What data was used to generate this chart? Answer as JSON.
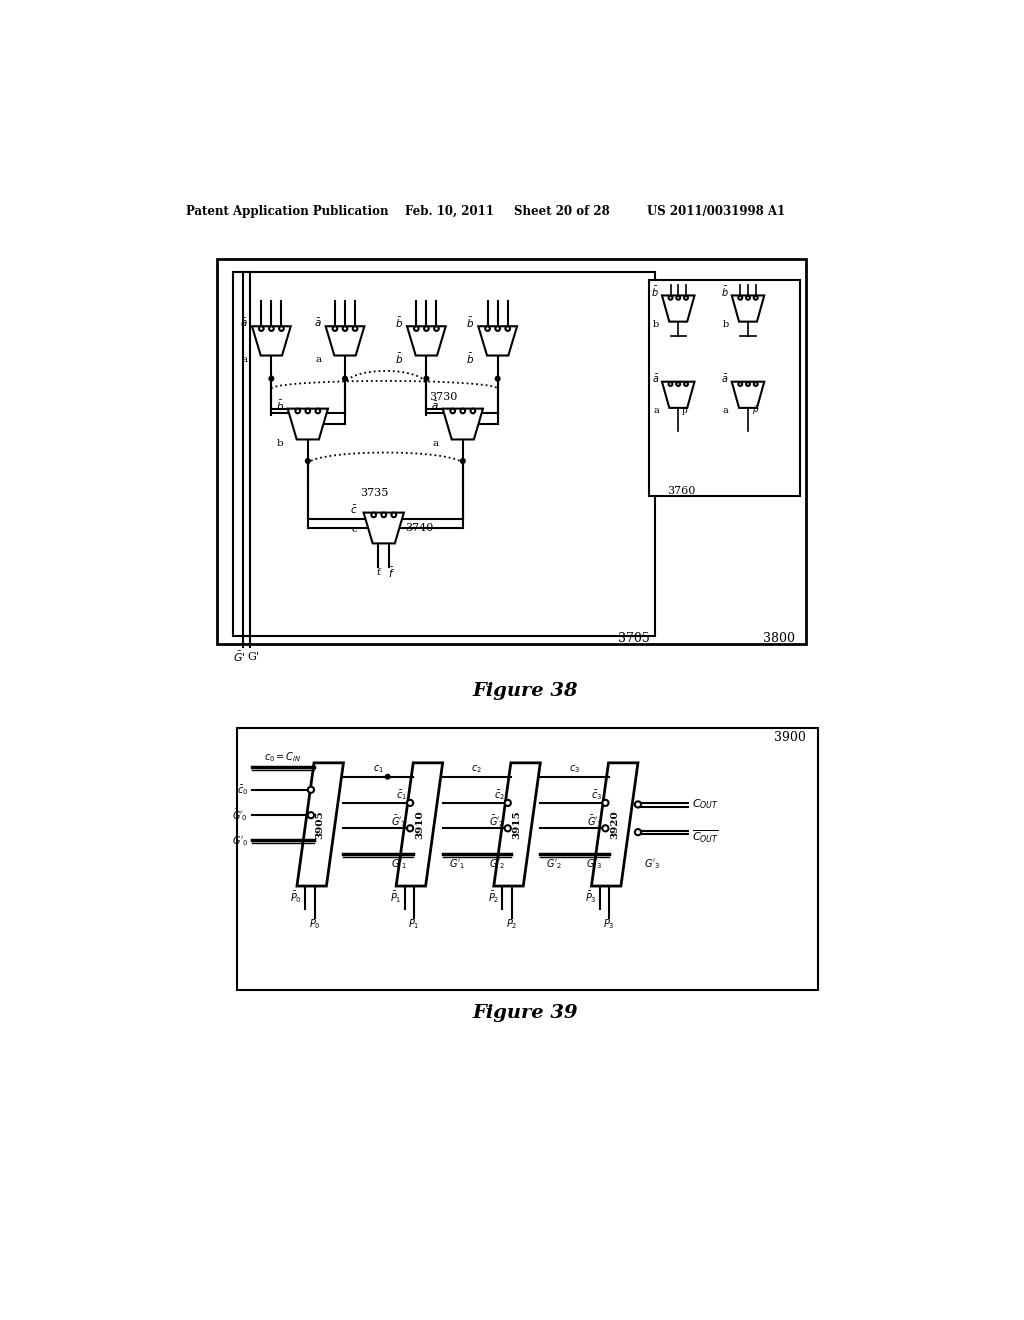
{
  "bg_color": "#ffffff",
  "header_text": "Patent Application Publication",
  "header_date": "Feb. 10, 2011",
  "header_sheet": "Sheet 20 of 28",
  "header_patent": "US 2011/0031998 A1",
  "fig38_caption": "Figure 38",
  "fig39_caption": "Figure 39",
  "text_color": "#000000",
  "line_color": "#000000"
}
